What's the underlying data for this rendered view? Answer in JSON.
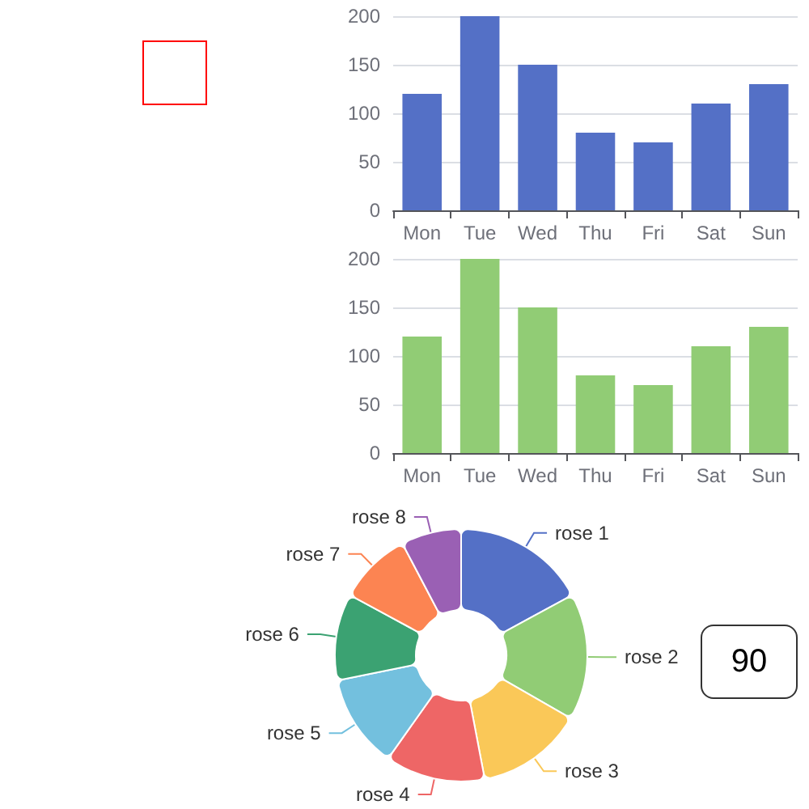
{
  "chart_data": [
    {
      "type": "bar",
      "categories": [
        "Mon",
        "Tue",
        "Wed",
        "Thu",
        "Fri",
        "Sat",
        "Sun"
      ],
      "values": [
        120,
        200,
        150,
        80,
        70,
        110,
        130
      ],
      "color": "#5470c6",
      "ylim": [
        0,
        200
      ],
      "yticks": [
        0,
        50,
        100,
        150,
        200
      ],
      "grid": "y"
    },
    {
      "type": "bar",
      "categories": [
        "Mon",
        "Tue",
        "Wed",
        "Thu",
        "Fri",
        "Sat",
        "Sun"
      ],
      "values": [
        120,
        200,
        150,
        80,
        70,
        110,
        130
      ],
      "color": "#91cc75",
      "ylim": [
        0,
        200
      ],
      "yticks": [
        0,
        50,
        100,
        150,
        200
      ],
      "grid": "y"
    },
    {
      "type": "donut",
      "categories": [
        "rose 1",
        "rose 2",
        "rose 3",
        "rose 4",
        "rose 5",
        "rose 6",
        "rose 7",
        "rose 8"
      ],
      "values": [
        17.1,
        16.2,
        13.7,
        12.8,
        12.0,
        11.1,
        9.4,
        7.7
      ],
      "colors": [
        "#5470c6",
        "#91cc75",
        "#fac858",
        "#ee6666",
        "#73c0de",
        "#3ba272",
        "#fc8452",
        "#9a60b4"
      ],
      "annotations": [
        "90"
      ]
    }
  ]
}
